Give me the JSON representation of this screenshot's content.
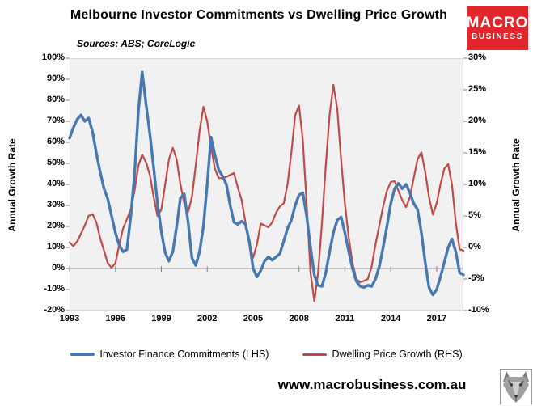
{
  "header": {
    "title": "Melbourne Investor Commitments vs Dwelling Price Growth",
    "sources": "Sources: ABS; CoreLogic",
    "logo": {
      "line1": "MACRO",
      "line2": "BUSINESS"
    }
  },
  "axes": {
    "left_title": "Annual Growth Rate",
    "right_title": "Annual Growth Rate",
    "left_ticks": [
      "100%",
      "90%",
      "80%",
      "70%",
      "60%",
      "50%",
      "40%",
      "30%",
      "20%",
      "10%",
      "0%",
      "-10%",
      "-20%"
    ],
    "right_ticks": [
      "30%",
      "25%",
      "20%",
      "15%",
      "10%",
      "5%",
      "0%",
      "-5%",
      "-10%"
    ],
    "x_ticks": [
      "1993",
      "1996",
      "1999",
      "2002",
      "2005",
      "2008",
      "2011",
      "2014",
      "2017"
    ]
  },
  "legend": {
    "items": [
      {
        "label": "Investor Finance Commitments (LHS)",
        "color": "#4678B2"
      },
      {
        "label": "Dwelling Price Growth (RHS)",
        "color": "#BE4B48"
      }
    ]
  },
  "footer": {
    "url": "www.macrobusiness.com.au",
    "icon": "wolf-icon"
  },
  "colors": {
    "investor_blue": "#4678B2",
    "dwelling_red": "#BE4B48",
    "plot_bg": "#F1F1F1",
    "zero_line": "#999999",
    "axis_line": "#808080",
    "border_line": "#D9D9D9",
    "logo_red": "#E2262C"
  },
  "chart_data": {
    "type": "line",
    "title": "Melbourne Investor Commitments vs Dwelling Price Growth",
    "x_start": 1993.0,
    "x_step": 0.25,
    "x_axis_range": [
      1993,
      2018.75
    ],
    "x_tick_years": [
      1993,
      1996,
      1999,
      2002,
      2005,
      2008,
      2011,
      2014,
      2017
    ],
    "left_axis": {
      "label": "Annual Growth Rate",
      "range": [
        -20,
        100
      ],
      "tick_step": 10,
      "format": "percent"
    },
    "right_axis": {
      "label": "Annual Growth Rate",
      "range": [
        -10,
        30
      ],
      "tick_step": 5,
      "format": "percent"
    },
    "grid": false,
    "legend_position": "bottom",
    "series": [
      {
        "name": "Investor Finance Commitments (LHS)",
        "axis": "left",
        "color": "#4678B2",
        "values": [
          62,
          67,
          71,
          73,
          70,
          71.5,
          65,
          55,
          46,
          38,
          33,
          25,
          17,
          11,
          8,
          9,
          25,
          45,
          75,
          93.5,
          78,
          64,
          48,
          31,
          17.5,
          7.5,
          3.5,
          8,
          20,
          33.5,
          35.5,
          22,
          5,
          1.5,
          8,
          20,
          40,
          62.5,
          54,
          47,
          44,
          40,
          30,
          22,
          21,
          22.5,
          21,
          13,
          0,
          -4,
          -1,
          3.5,
          5.5,
          4,
          5.5,
          7,
          13,
          19,
          23,
          30,
          35,
          36,
          25,
          10,
          -3,
          -8,
          -8.5,
          -2,
          8,
          17,
          23,
          24.5,
          17,
          8,
          0,
          -6,
          -8.5,
          -9,
          -8,
          -8.5,
          -5,
          1,
          10,
          20,
          31,
          38,
          40.5,
          38,
          40,
          36,
          31,
          28,
          17,
          3,
          -9,
          -12.5,
          -10,
          -4,
          3,
          10,
          14,
          8,
          -2,
          -3
        ]
      },
      {
        "name": "Dwelling Price Growth (RHS)",
        "axis": "right",
        "color": "#BE4B48",
        "values": [
          0.8,
          0.2,
          1,
          2.2,
          3.5,
          5,
          5.3,
          4,
          1.5,
          -0.5,
          -2.5,
          -3.2,
          -2.5,
          0.5,
          3,
          4.5,
          6,
          9,
          13,
          14.7,
          13.5,
          11.5,
          8,
          5,
          6,
          10,
          14,
          15.8,
          14,
          10,
          7,
          5.6,
          8,
          13,
          18.5,
          22.3,
          20,
          16,
          12.5,
          11,
          11,
          11.2,
          11.5,
          11.8,
          9.5,
          7.5,
          4,
          0.5,
          -1.6,
          0.5,
          3.8,
          3.5,
          3.2,
          4,
          5.5,
          6.5,
          7,
          10,
          15,
          21,
          22.5,
          17,
          7,
          -4,
          -8.5,
          -4,
          4,
          13,
          21,
          25.8,
          22,
          14,
          7,
          1.5,
          -2.5,
          -5,
          -5.5,
          -5.3,
          -5,
          -3,
          0.5,
          3.5,
          6.5,
          9,
          10.4,
          10.5,
          9,
          7.5,
          6.4,
          8,
          11,
          14,
          15.1,
          12,
          8,
          5.2,
          7,
          10,
          12.5,
          13.2,
          10,
          4,
          -0.3,
          -0.5
        ]
      }
    ]
  }
}
